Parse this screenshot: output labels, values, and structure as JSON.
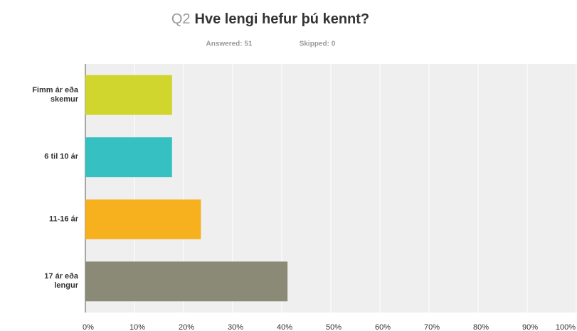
{
  "chart_data": {
    "type": "bar",
    "orientation": "horizontal",
    "title_prefix": "Q2",
    "title": "Hve lengi hefur þú kennt?",
    "answered": "Answered: 51",
    "skipped": "Skipped: 0",
    "categories": [
      "Fimm ár eða skemur",
      "6 til 10 ár",
      "11-16 ár",
      "17 ár eða lengur"
    ],
    "values": [
      17.65,
      17.65,
      23.53,
      41.18
    ],
    "colors": [
      "#d0d62d",
      "#36c0c1",
      "#f7b01e",
      "#8a8a77"
    ],
    "xlim": [
      0,
      100
    ],
    "xticks": [
      {
        "value": 0,
        "label": "0%"
      },
      {
        "value": 10,
        "label": "10%"
      },
      {
        "value": 20,
        "label": "20%"
      },
      {
        "value": 30,
        "label": "30%"
      },
      {
        "value": 40,
        "label": "40%"
      },
      {
        "value": 50,
        "label": "50%"
      },
      {
        "value": 60,
        "label": "60%"
      },
      {
        "value": 70,
        "label": "70%"
      },
      {
        "value": 80,
        "label": "80%"
      },
      {
        "value": 90,
        "label": "90%"
      },
      {
        "value": 100,
        "label": "100%"
      }
    ],
    "grid": true
  }
}
